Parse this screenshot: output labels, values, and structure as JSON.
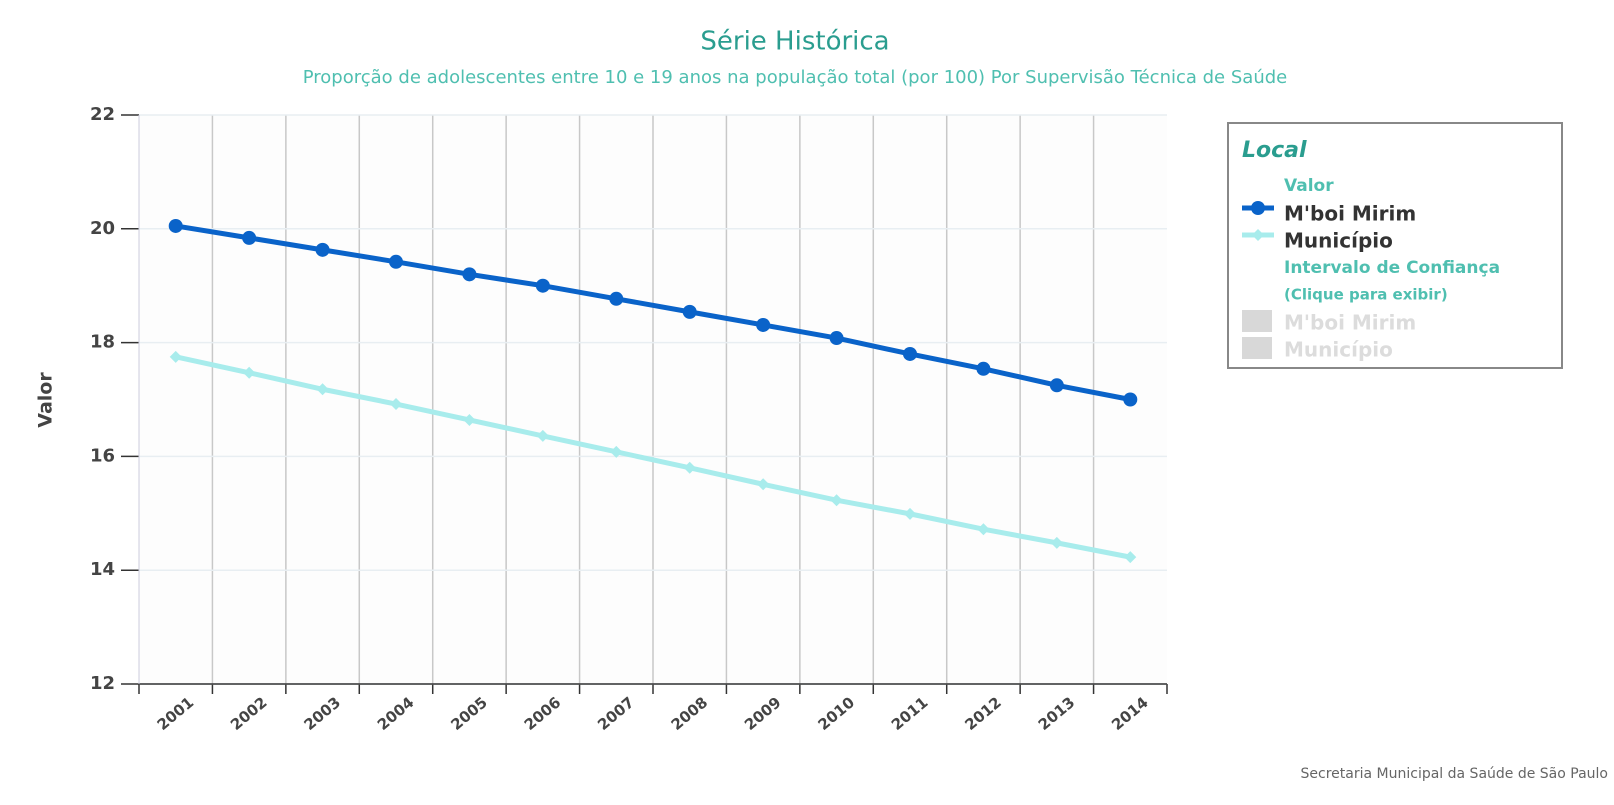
{
  "chart_data": {
    "type": "line",
    "title": "Série Histórica",
    "subtitle": "Proporção de adolescentes entre 10 e 19 anos na população total (por 100) Por Supervisão Técnica de Saúde",
    "y_label": "Valor",
    "categories": [
      "2001",
      "2002",
      "2003",
      "2004",
      "2005",
      "2006",
      "2007",
      "2008",
      "2009",
      "2010",
      "2011",
      "2012",
      "2013",
      "2014"
    ],
    "series": [
      {
        "name": "M'boi Mirim",
        "color": "#0a63c9",
        "values": [
          20.05,
          19.84,
          19.63,
          19.42,
          19.2,
          19.0,
          18.77,
          18.54,
          18.31,
          18.08,
          17.8,
          17.54,
          17.25,
          17.0
        ]
      },
      {
        "name": "Município",
        "color": "#a8ecec",
        "values": [
          17.75,
          17.47,
          17.18,
          16.92,
          16.64,
          16.36,
          16.08,
          15.8,
          15.51,
          15.23,
          14.99,
          14.72,
          14.48,
          14.23
        ]
      }
    ],
    "ylim": [
      12,
      22
    ],
    "yticks": [
      12,
      14,
      16,
      18,
      20,
      22
    ],
    "grid": true,
    "legend": {
      "title": "Local",
      "value_header": "Valor",
      "ci_header": "Intervalo de Confiança",
      "ci_hint": "(Clique para exibir)"
    },
    "credit": "Secretaria Municipal da Saúde de São Paulo"
  }
}
